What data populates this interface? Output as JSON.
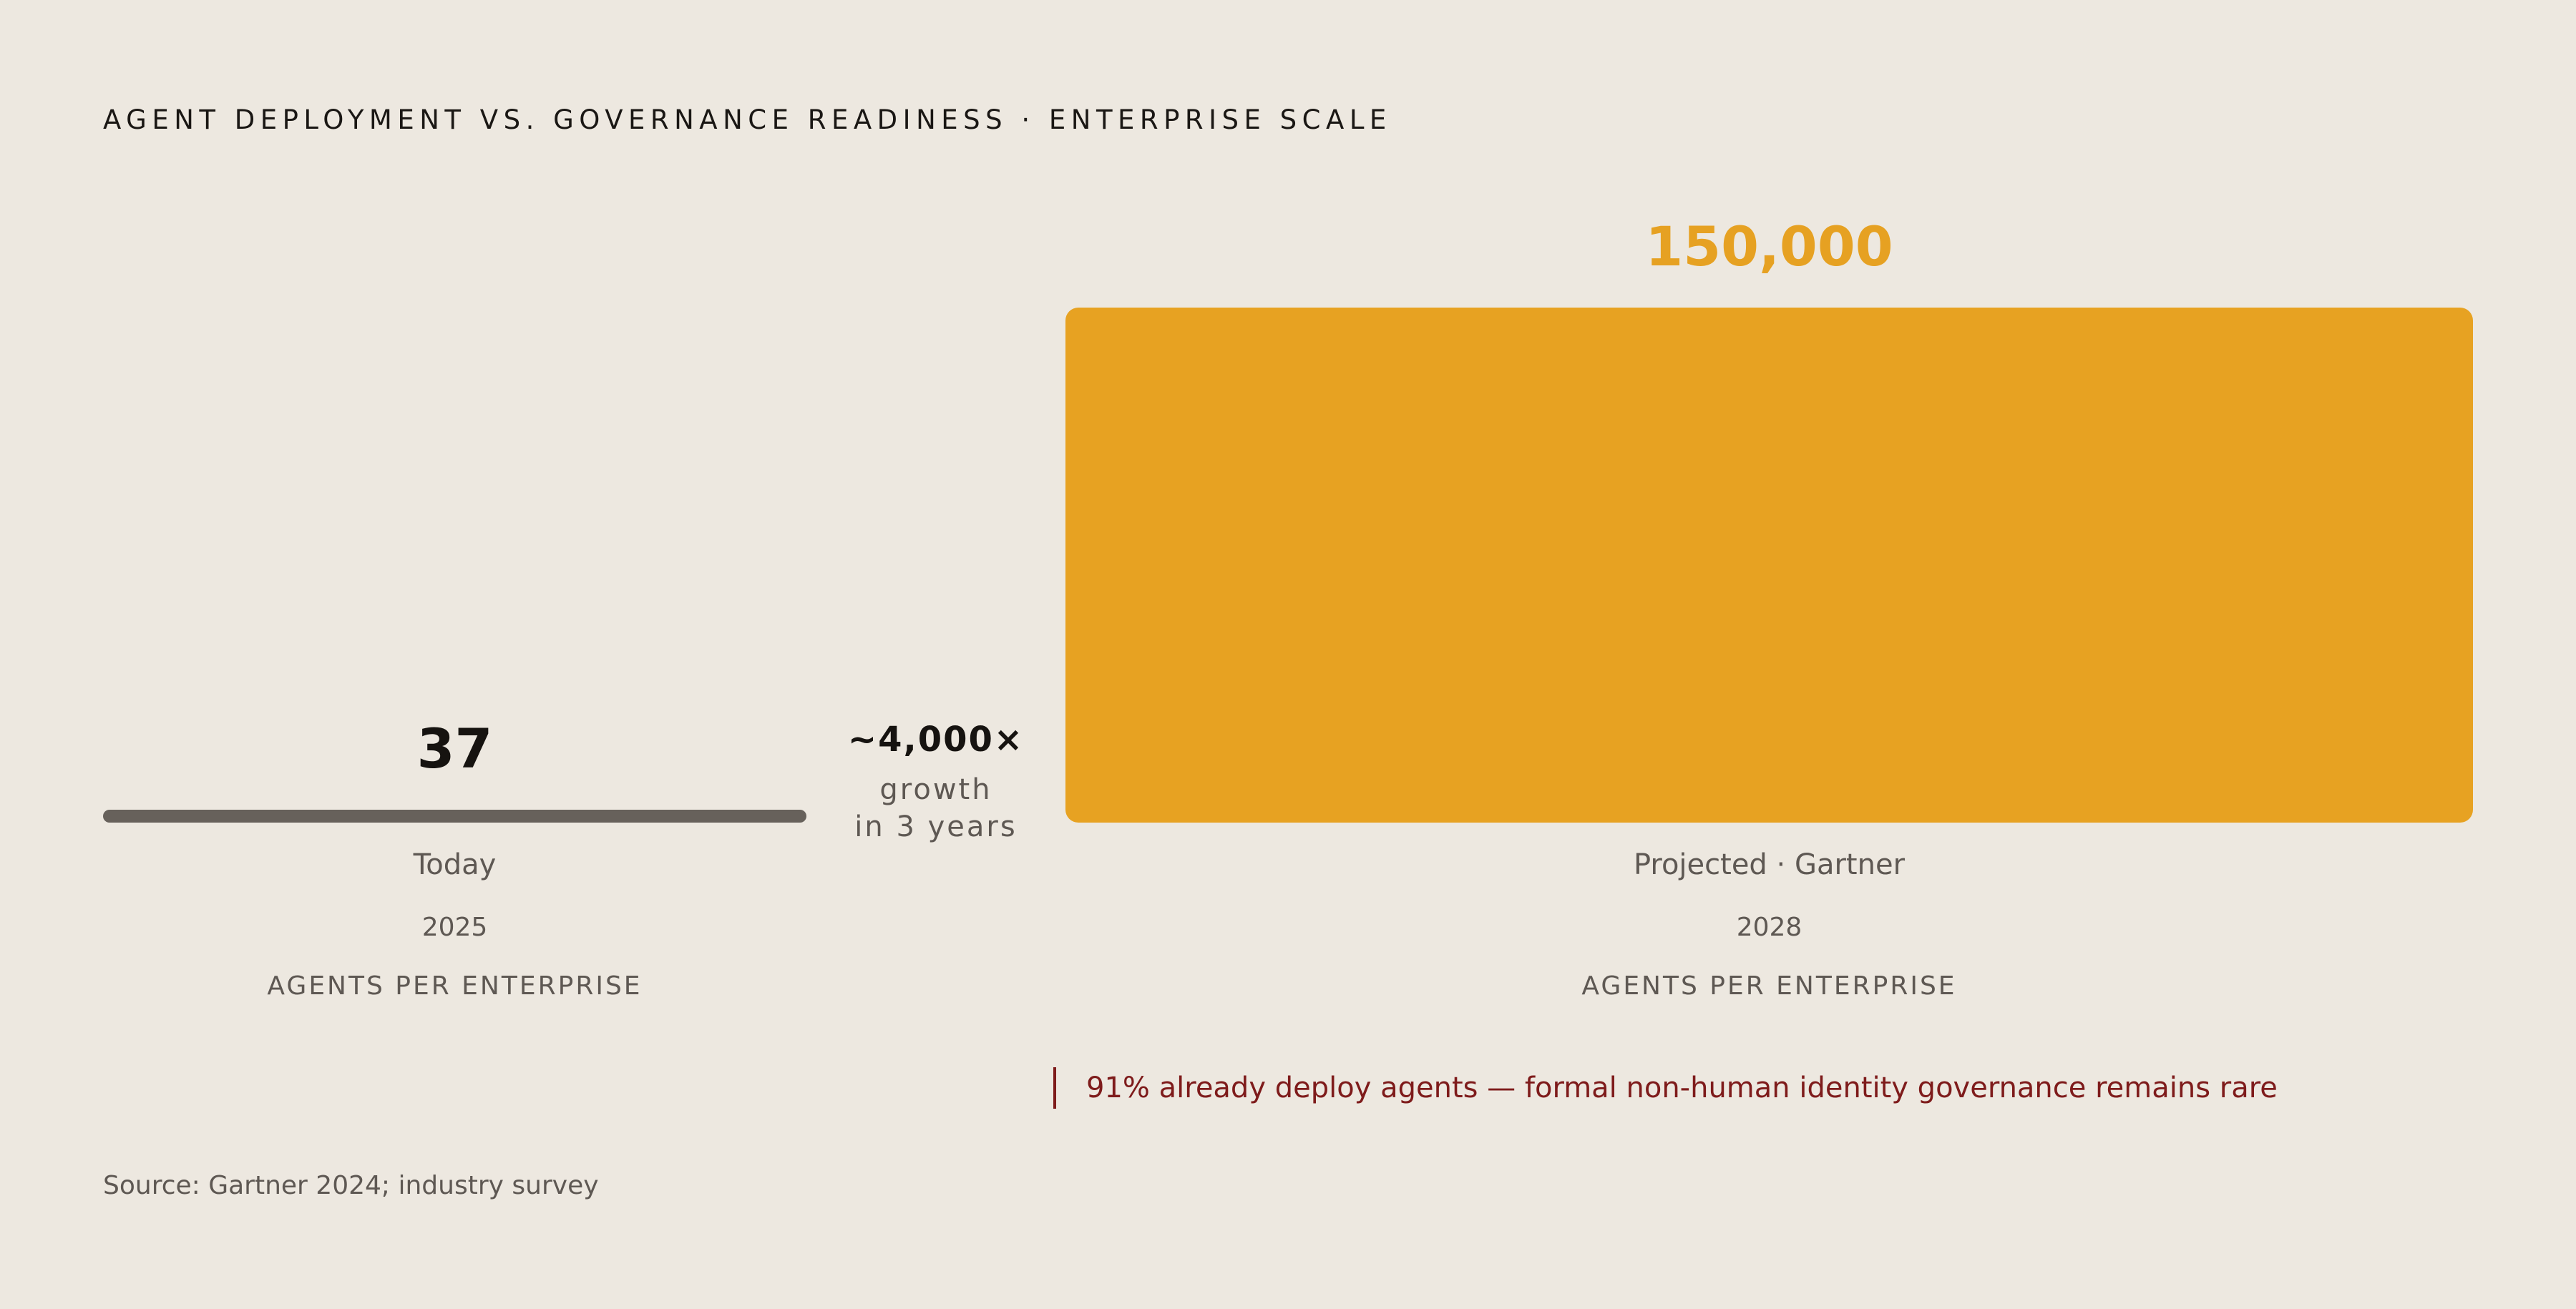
{
  "header": {
    "title": "AGENT DEPLOYMENT VS. GOVERNANCE READINESS · ENTERPRISE SCALE"
  },
  "comparison": {
    "multiplier": "~4,000×",
    "multiplier_sub_1": "growth",
    "multiplier_sub_2": "in 3 years"
  },
  "callout": {
    "text": "91% already deploy agents — formal non-human identity governance remains rare",
    "color": "#7E1B1B"
  },
  "footer": {
    "source": "Source: Gartner 2024; industry survey"
  },
  "colors": {
    "background": "#EDE8E0",
    "today_bar": "#67615B",
    "projected_bar": "#E7A222",
    "projected_value": "#E6A122"
  },
  "chart_data": {
    "type": "bar",
    "title": "AGENT DEPLOYMENT VS. GOVERNANCE READINESS · ENTERPRISE SCALE",
    "categories": [
      "Today",
      "Projected · Gartner"
    ],
    "years": [
      "2025",
      "2028"
    ],
    "unit_label": "AGENTS PER ENTERPRISE",
    "values": [
      37,
      150000
    ],
    "value_labels": [
      "37",
      "150,000"
    ],
    "ylim": [
      0,
      150000
    ],
    "grid": false,
    "legend": "none"
  }
}
